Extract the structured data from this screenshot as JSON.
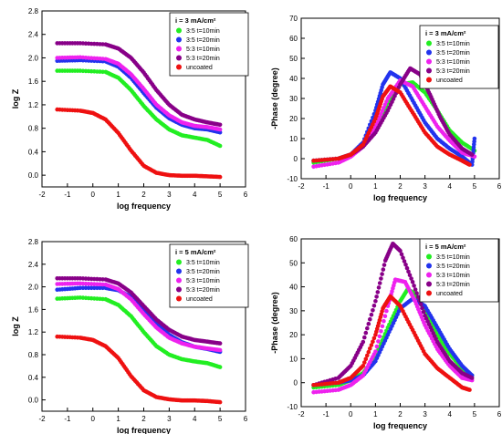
{
  "chart_data": [
    {
      "type": "scatter",
      "xlabel": "log frequency",
      "ylabel": "log Z",
      "xlim": [
        -2,
        6
      ],
      "ylim": [
        -0.2,
        2.8
      ],
      "xticks": [
        -2,
        -1,
        0,
        1,
        2,
        3,
        4,
        5,
        6
      ],
      "yticks": [
        0.0,
        0.4,
        0.8,
        1.2,
        1.6,
        2.0,
        2.4,
        2.8
      ],
      "ytick_labels": [
        "0.0",
        "0.4",
        "0.8",
        "1.2",
        "1.6",
        "2.0",
        "2.4",
        "2.8"
      ],
      "legend": {
        "title": "i = 3 mA/cm²",
        "placement": "top-right"
      },
      "series": [
        {
          "name": "3:5 t=10min",
          "color": "#22ee22",
          "x": [
            -1.4,
            -0.5,
            0.5,
            1.0,
            1.5,
            2.0,
            2.5,
            3.0,
            3.5,
            4.0,
            4.5,
            5.0
          ],
          "y": [
            1.78,
            1.78,
            1.76,
            1.66,
            1.45,
            1.18,
            0.95,
            0.78,
            0.68,
            0.64,
            0.6,
            0.5
          ]
        },
        {
          "name": "3:5 t=20min",
          "color": "#2233ee",
          "x": [
            -1.4,
            -0.5,
            0.5,
            1.0,
            1.5,
            2.0,
            2.5,
            3.0,
            3.5,
            4.0,
            4.5,
            5.0
          ],
          "y": [
            1.95,
            1.96,
            1.94,
            1.85,
            1.66,
            1.4,
            1.15,
            0.97,
            0.86,
            0.8,
            0.78,
            0.73
          ]
        },
        {
          "name": "5:3 t=10min",
          "color": "#ee22ee",
          "x": [
            -1.4,
            -0.5,
            0.5,
            1.0,
            1.5,
            2.0,
            2.5,
            3.0,
            3.5,
            4.0,
            4.5,
            5.0
          ],
          "y": [
            2.0,
            2.01,
            1.98,
            1.9,
            1.72,
            1.47,
            1.2,
            1.02,
            0.9,
            0.84,
            0.82,
            0.78
          ]
        },
        {
          "name": "5:3 t=20min",
          "color": "#880088",
          "x": [
            -1.4,
            -0.5,
            0.5,
            1.0,
            1.5,
            2.0,
            2.5,
            3.0,
            3.5,
            4.0,
            4.5,
            5.0
          ],
          "y": [
            2.25,
            2.25,
            2.23,
            2.16,
            2.0,
            1.75,
            1.45,
            1.2,
            1.03,
            0.95,
            0.9,
            0.86
          ]
        },
        {
          "name": "uncoated",
          "color": "#ee1111",
          "x": [
            -1.4,
            -0.5,
            0.0,
            0.5,
            1.0,
            1.5,
            2.0,
            2.5,
            3.0,
            3.5,
            4.0,
            4.5,
            5.0
          ],
          "y": [
            1.12,
            1.1,
            1.06,
            0.95,
            0.72,
            0.42,
            0.16,
            0.04,
            0.0,
            -0.01,
            -0.01,
            -0.02,
            -0.03
          ]
        }
      ]
    },
    {
      "type": "scatter",
      "xlabel": "log frequency",
      "ylabel": "-Phase (degree)",
      "xlim": [
        -2,
        6
      ],
      "ylim": [
        -10,
        70
      ],
      "xticks": [
        -2,
        -1,
        0,
        1,
        2,
        3,
        4,
        5,
        6
      ],
      "yticks": [
        -10,
        0,
        10,
        20,
        30,
        40,
        50,
        60,
        70
      ],
      "ytick_labels": [
        "-10",
        "0",
        "10",
        "20",
        "30",
        "40",
        "50",
        "60",
        "70"
      ],
      "legend": {
        "title": "i = 3 mA/cm²",
        "placement": "top-right"
      },
      "series": [
        {
          "name": "3:5 t=10min",
          "color": "#22ee22",
          "x": [
            -1.5,
            -0.5,
            0.0,
            0.5,
            1.0,
            1.5,
            2.0,
            2.5,
            3.0,
            3.5,
            4.0,
            4.5,
            5.0
          ],
          "y": [
            -2,
            0,
            2,
            6,
            15,
            28,
            37,
            38,
            33,
            24,
            14,
            8,
            4
          ]
        },
        {
          "name": "3:5 t=20min",
          "color": "#2233ee",
          "x": [
            -1.5,
            -0.5,
            0.0,
            0.5,
            1.0,
            1.3,
            1.6,
            2.0,
            2.5,
            3.0,
            3.5,
            4.0,
            4.5,
            4.9,
            5.0
          ],
          "y": [
            -1,
            0,
            2,
            8,
            24,
            37,
            43,
            40,
            29,
            18,
            10,
            5,
            1,
            -3,
            10
          ]
        },
        {
          "name": "5:3 t=10min",
          "color": "#ee22ee",
          "x": [
            -1.5,
            -0.5,
            0.0,
            0.5,
            1.0,
            1.5,
            2.0,
            2.5,
            3.0,
            3.5,
            4.0,
            4.5,
            5.0
          ],
          "y": [
            -4,
            -2,
            1,
            6,
            16,
            30,
            39,
            36,
            26,
            16,
            9,
            3,
            1
          ]
        },
        {
          "name": "5:3 t=20min",
          "color": "#880088",
          "x": [
            -1.5,
            -0.5,
            0.0,
            0.5,
            1.0,
            1.5,
            2.0,
            2.4,
            2.8,
            3.2,
            3.6,
            4.0,
            4.5,
            4.9
          ],
          "y": [
            -1,
            0,
            2,
            6,
            13,
            24,
            37,
            45,
            42,
            32,
            21,
            12,
            5,
            2
          ]
        },
        {
          "name": "uncoated",
          "color": "#ee1111",
          "x": [
            -1.5,
            -0.5,
            0.0,
            0.5,
            1.0,
            1.3,
            1.6,
            2.0,
            2.5,
            3.0,
            3.5,
            4.0,
            4.5,
            4.8
          ],
          "y": [
            -1,
            0,
            2,
            7,
            20,
            31,
            36,
            33,
            23,
            13,
            6,
            2,
            -1,
            -3
          ]
        }
      ]
    },
    {
      "type": "scatter",
      "xlabel": "log frequency",
      "ylabel": "log Z",
      "xlim": [
        -2,
        6
      ],
      "ylim": [
        -0.2,
        2.8
      ],
      "xticks": [
        -2,
        -1,
        0,
        1,
        2,
        3,
        4,
        5,
        6
      ],
      "yticks": [
        0.0,
        0.4,
        0.8,
        1.2,
        1.6,
        2.0,
        2.4,
        2.8
      ],
      "ytick_labels": [
        "0.0",
        "0.4",
        "0.8",
        "1.2",
        "1.6",
        "2.0",
        "2.4",
        "2.8"
      ],
      "legend": {
        "title": "i = 5 mA/cm²",
        "placement": "top-right"
      },
      "series": [
        {
          "name": "3:5 t=10min",
          "color": "#22ee22",
          "x": [
            -1.4,
            -0.5,
            0.5,
            1.0,
            1.5,
            2.0,
            2.5,
            3.0,
            3.5,
            4.0,
            4.5,
            5.0
          ],
          "y": [
            1.79,
            1.81,
            1.78,
            1.68,
            1.48,
            1.2,
            0.95,
            0.8,
            0.72,
            0.68,
            0.65,
            0.58
          ]
        },
        {
          "name": "3:5 t=20min",
          "color": "#2233ee",
          "x": [
            -1.4,
            -0.5,
            0.5,
            1.0,
            1.5,
            2.0,
            2.5,
            3.0,
            3.5,
            4.0,
            4.5,
            5.0
          ],
          "y": [
            1.95,
            1.98,
            1.98,
            1.94,
            1.82,
            1.6,
            1.35,
            1.15,
            1.02,
            0.94,
            0.9,
            0.85
          ]
        },
        {
          "name": "5:3 t=10min",
          "color": "#ee22ee",
          "x": [
            -1.4,
            -0.5,
            0.5,
            1.0,
            1.5,
            2.0,
            2.5,
            3.0,
            3.5,
            4.0,
            4.5,
            5.0
          ],
          "y": [
            2.05,
            2.06,
            2.04,
            1.96,
            1.78,
            1.52,
            1.28,
            1.1,
            1.0,
            0.94,
            0.91,
            0.88
          ]
        },
        {
          "name": "5:3 t=20min",
          "color": "#880088",
          "x": [
            -1.4,
            -0.5,
            0.5,
            1.0,
            1.5,
            2.0,
            2.5,
            3.0,
            3.5,
            4.0,
            4.5,
            5.0
          ],
          "y": [
            2.15,
            2.15,
            2.13,
            2.06,
            1.9,
            1.66,
            1.42,
            1.24,
            1.12,
            1.06,
            1.03,
            1.0
          ]
        },
        {
          "name": "uncoated",
          "color": "#ee1111",
          "x": [
            -1.4,
            -0.5,
            0.0,
            0.5,
            1.0,
            1.5,
            2.0,
            2.5,
            3.0,
            3.5,
            4.0,
            4.5,
            5.0
          ],
          "y": [
            1.12,
            1.1,
            1.06,
            0.95,
            0.74,
            0.42,
            0.17,
            0.05,
            0.01,
            -0.01,
            -0.01,
            -0.02,
            -0.04
          ]
        }
      ]
    },
    {
      "type": "scatter",
      "xlabel": "log frequency",
      "ylabel": "-Phase (degree)",
      "xlim": [
        -2,
        6
      ],
      "ylim": [
        -10,
        60
      ],
      "xticks": [
        -2,
        -1,
        0,
        1,
        2,
        3,
        4,
        5,
        6
      ],
      "yticks": [
        -10,
        0,
        10,
        20,
        30,
        40,
        50,
        60
      ],
      "ytick_labels": [
        "-10",
        "0",
        "10",
        "20",
        "30",
        "40",
        "50",
        "60"
      ],
      "legend": {
        "title": "i = 5 mA/cm²",
        "placement": "top-right"
      },
      "series": [
        {
          "name": "3:5 t=10min",
          "color": "#22ee22",
          "x": [
            -1.5,
            -0.5,
            0.0,
            0.5,
            1.0,
            1.5,
            2.0,
            2.3,
            2.6,
            3.0,
            3.5,
            4.0,
            4.5,
            4.9
          ],
          "y": [
            -2,
            -1,
            1,
            4,
            11,
            23,
            34,
            39,
            37,
            30,
            20,
            12,
            6,
            3
          ]
        },
        {
          "name": "3:5 t=20min",
          "color": "#2233ee",
          "x": [
            -1.5,
            -0.5,
            0.0,
            0.5,
            1.0,
            1.5,
            2.0,
            2.5,
            3.0,
            3.5,
            4.0,
            4.5,
            4.9
          ],
          "y": [
            -1,
            0,
            1,
            3,
            9,
            20,
            31,
            35,
            32,
            23,
            14,
            7,
            3
          ]
        },
        {
          "name": "5:3 t=10min",
          "color": "#ee22ee",
          "x": [
            -1.5,
            -0.5,
            0.0,
            0.5,
            1.0,
            1.5,
            1.8,
            2.2,
            2.6,
            3.0,
            3.5,
            4.0,
            4.5,
            4.9
          ],
          "y": [
            -4,
            -3,
            -1,
            3,
            13,
            32,
            43,
            42,
            34,
            24,
            14,
            7,
            2,
            1
          ]
        },
        {
          "name": "5:3 t=20min",
          "color": "#880088",
          "x": [
            -1.5,
            -0.5,
            0.0,
            0.5,
            1.0,
            1.4,
            1.7,
            2.0,
            2.5,
            3.0,
            3.5,
            4.0,
            4.5,
            4.9
          ],
          "y": [
            -1,
            2,
            7,
            17,
            34,
            51,
            58,
            55,
            42,
            28,
            17,
            9,
            4,
            2
          ]
        },
        {
          "name": "uncoated",
          "color": "#ee1111",
          "x": [
            -1.5,
            -0.5,
            0.0,
            0.5,
            1.0,
            1.3,
            1.6,
            2.0,
            2.5,
            3.0,
            3.5,
            4.0,
            4.5,
            4.8
          ],
          "y": [
            -1,
            0,
            2,
            7,
            20,
            31,
            36,
            32,
            22,
            12,
            6,
            2,
            -2,
            -3
          ]
        }
      ]
    }
  ]
}
